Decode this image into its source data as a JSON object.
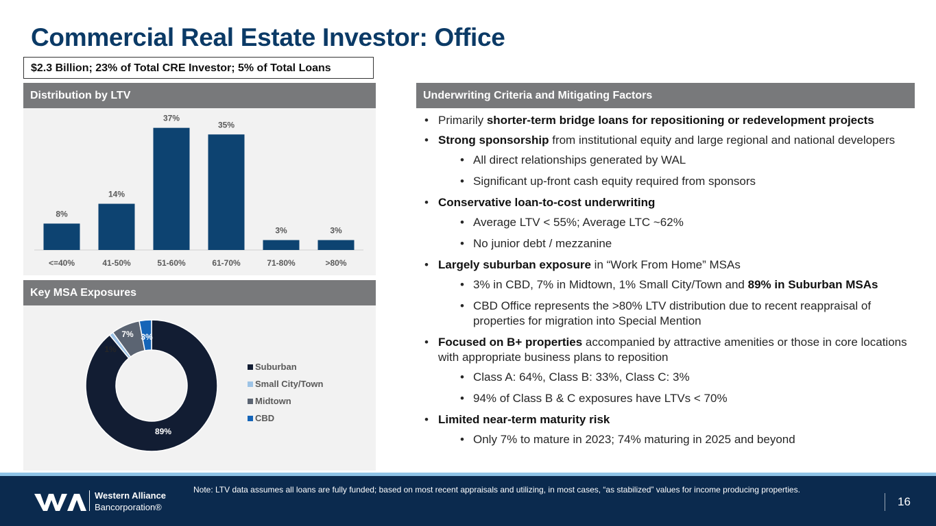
{
  "title": "Commercial Real Estate Investor: Office",
  "subtitle": "$2.3 Billion; 23% of Total CRE Investor; 5% of Total Loans",
  "ltv_panel": {
    "header": "Distribution by LTV"
  },
  "msa_panel": {
    "header": "Key MSA Exposures"
  },
  "criteria_panel": {
    "header": "Underwriting Criteria and Mitigating Factors"
  },
  "chart_data": [
    {
      "type": "bar",
      "title": "Distribution by LTV",
      "categories": [
        "<=40%",
        "41-50%",
        "51-60%",
        "61-70%",
        "71-80%",
        ">80%"
      ],
      "values": [
        8,
        14,
        37,
        35,
        3,
        3
      ],
      "value_labels": [
        "8%",
        "14%",
        "37%",
        "35%",
        "3%",
        "3%"
      ],
      "ylim": [
        0,
        40
      ],
      "grid": false,
      "color": "#0d4371"
    },
    {
      "type": "pie",
      "title": "Key MSA Exposures",
      "donut": true,
      "categories": [
        "Suburban",
        "Small City/Town",
        "Midtown",
        "CBD"
      ],
      "values": [
        89,
        1,
        7,
        3
      ],
      "value_labels": [
        "89%",
        "1%",
        "7%",
        "3%"
      ],
      "colors": [
        "#121d33",
        "#9dc3e6",
        "#5b6472",
        "#1565b8"
      ],
      "legend_position": "right"
    }
  ],
  "bullets": [
    {
      "level": 1,
      "parts": [
        {
          "text": "Primarily ",
          "bold": false
        },
        {
          "text": "shorter-term bridge loans for repositioning or redevelopment projects",
          "bold": true
        }
      ]
    },
    {
      "level": 1,
      "parts": [
        {
          "text": "Strong sponsorship",
          "bold": true
        },
        {
          "text": " from institutional equity and large regional and national developers",
          "bold": false
        }
      ]
    },
    {
      "level": 2,
      "parts": [
        {
          "text": "All direct relationships generated by WAL",
          "bold": false
        }
      ]
    },
    {
      "level": 2,
      "parts": [
        {
          "text": "Significant up-front cash equity required from sponsors",
          "bold": false
        }
      ]
    },
    {
      "level": 1,
      "parts": [
        {
          "text": "Conservative loan-to-cost underwriting",
          "bold": true
        }
      ]
    },
    {
      "level": 2,
      "parts": [
        {
          "text": "Average LTV < 55%; Average LTC ~62%",
          "bold": false
        }
      ]
    },
    {
      "level": 2,
      "parts": [
        {
          "text": "No junior debt / mezzanine",
          "bold": false
        }
      ]
    },
    {
      "level": 1,
      "parts": [
        {
          "text": "Largely suburban exposure",
          "bold": true
        },
        {
          "text": " in “Work From Home” MSAs",
          "bold": false
        }
      ]
    },
    {
      "level": 2,
      "parts": [
        {
          "text": "3% in CBD, 7% in Midtown, 1% Small City/Town and ",
          "bold": false
        },
        {
          "text": "89% in Suburban MSAs",
          "bold": true
        }
      ]
    },
    {
      "level": 2,
      "parts": [
        {
          "text": "CBD Office represents the >80% LTV distribution due to recent reappraisal of properties for migration into Special Mention",
          "bold": false
        }
      ]
    },
    {
      "level": 1,
      "parts": [
        {
          "text": "Focused on B+ properties",
          "bold": true
        },
        {
          "text": " accompanied by attractive amenities or those in core locations with appropriate business plans to reposition",
          "bold": false
        }
      ]
    },
    {
      "level": 2,
      "parts": [
        {
          "text": "Class A: 64%, Class B: 33%, Class C: 3%",
          "bold": false
        }
      ]
    },
    {
      "level": 2,
      "parts": [
        {
          "text": "94% of Class B & C exposures have LTVs < 70%",
          "bold": false
        }
      ]
    },
    {
      "level": 1,
      "parts": [
        {
          "text": "Limited near-term maturity risk",
          "bold": true
        }
      ]
    },
    {
      "level": 2,
      "parts": [
        {
          "text": "Only 7% to mature in 2023; 74% maturing in 2025 and beyond",
          "bold": false
        }
      ]
    }
  ],
  "footer": {
    "company_line1": "Western Alliance",
    "company_line2": "Bancorporation®",
    "note": "Note: LTV data assumes all loans are fully funded; based on most recent appraisals and utilizing, in most cases, “as stabilized” values for income producing properties.",
    "page_number": "16"
  },
  "icons": {
    "logo": "western-alliance-logo-icon"
  }
}
